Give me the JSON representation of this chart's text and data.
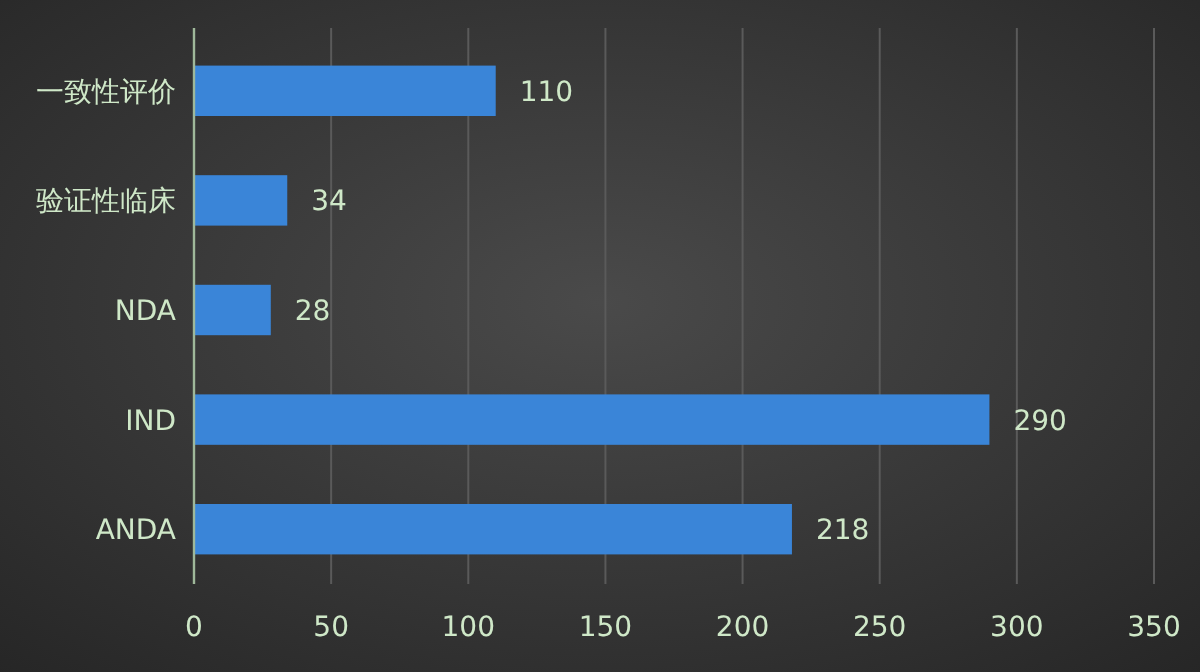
{
  "chart_data": {
    "type": "bar",
    "orientation": "horizontal",
    "categories": [
      "一致性评价",
      "验证性临床",
      "NDA",
      "IND",
      "ANDA"
    ],
    "values": [
      110,
      34,
      28,
      290,
      218
    ],
    "color": "#3a85d8",
    "xlim": [
      0,
      350
    ],
    "xticks": [
      0,
      50,
      100,
      150,
      200,
      250,
      300,
      350
    ],
    "grid": "x",
    "data_labels": true
  }
}
